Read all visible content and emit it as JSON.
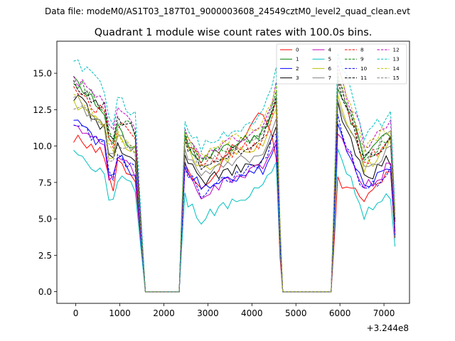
{
  "chart_data": {
    "type": "line",
    "suptitle": "Data file: modeM0/AS1T03_187T01_9000003608_24549cztM0_level2_quad_clean.evt",
    "title": "Quadrant 1 module wise count rates with 100.0s bins.",
    "xlabel": "",
    "ylabel": "",
    "x_offset_label": "+3.244e8",
    "xlim": [
      -430,
      7580
    ],
    "ylim": [
      -0.8,
      17.2
    ],
    "xticks": [
      0,
      1000,
      2000,
      3000,
      4000,
      5000,
      6000,
      7000
    ],
    "yticks": [
      0.0,
      2.5,
      5.0,
      7.5,
      10.0,
      12.5,
      15.0
    ],
    "ytick_labels": [
      "0.0",
      "2.5",
      "5.0",
      "7.5",
      "10.0",
      "12.5",
      "15.0"
    ],
    "legend_position": "upper-right",
    "legend_columns": 4,
    "segments": [
      {
        "start": -50,
        "end": 1430
      },
      {
        "start": 2280,
        "end": 4570
      },
      {
        "start": 5950,
        "end": 7200
      }
    ],
    "series": [
      {
        "name": "0",
        "color": "#ff0000",
        "dash": "solid",
        "levels": [
          10.7,
          7.8,
          8.2,
          12.6,
          7.8,
          8.2
        ]
      },
      {
        "name": "1",
        "color": "#008000",
        "dash": "solid",
        "levels": [
          14.8,
          9.5,
          10.2,
          11.0,
          14.3,
          11.2
        ]
      },
      {
        "name": "2",
        "color": "#0000ff",
        "dash": "solid",
        "levels": [
          11.8,
          8.0,
          8.3,
          8.4,
          11.3,
          8.8
        ]
      },
      {
        "name": "3",
        "color": "#000000",
        "dash": "solid",
        "levels": [
          13.5,
          8.7,
          8.8,
          8.9,
          12.8,
          9.3
        ]
      },
      {
        "name": "4",
        "color": "#bf00bf",
        "dash": "solid",
        "levels": [
          11.8,
          7.9,
          7.9,
          8.6,
          11.0,
          8.8
        ]
      },
      {
        "name": "5",
        "color": "#00bfbf",
        "dash": "solid",
        "levels": [
          9.6,
          6.8,
          6.2,
          7.1,
          9.8,
          6.9
        ]
      },
      {
        "name": "6",
        "color": "#bfbf00",
        "dash": "solid",
        "levels": [
          13.0,
          9.5,
          9.7,
          10.2,
          13.5,
          10.3
        ]
      },
      {
        "name": "7",
        "color": "#808080",
        "dash": "solid",
        "levels": [
          13.3,
          9.3,
          9.2,
          9.6,
          13.2,
          10.1
        ]
      },
      {
        "name": "8",
        "color": "#ff0000",
        "dash": "dashed",
        "levels": [
          13.9,
          10.3,
          10.1,
          10.3,
          14.5,
          10.7
        ]
      },
      {
        "name": "9",
        "color": "#008000",
        "dash": "dashed",
        "levels": [
          14.6,
          10.7,
          10.4,
          10.8,
          14.6,
          11.0
        ]
      },
      {
        "name": "10",
        "color": "#0000ff",
        "dash": "dashed",
        "levels": [
          11.6,
          8.1,
          8.0,
          8.9,
          11.8,
          8.6
        ]
      },
      {
        "name": "11",
        "color": "#000000",
        "dash": "dashed",
        "levels": [
          14.2,
          10.9,
          9.9,
          10.5,
          14.6,
          10.7
        ]
      },
      {
        "name": "12",
        "color": "#bf00bf",
        "dash": "dashed",
        "levels": [
          14.6,
          11.2,
          10.6,
          11.3,
          15.2,
          11.9
        ]
      },
      {
        "name": "13",
        "color": "#00bfbf",
        "dash": "dashed",
        "levels": [
          15.9,
          11.9,
          11.1,
          12.2,
          16.2,
          12.5
        ]
      },
      {
        "name": "14",
        "color": "#bfbf00",
        "dash": "dashed",
        "levels": [
          13.4,
          9.7,
          10.4,
          11.6,
          15.3,
          11.6
        ]
      },
      {
        "name": "15",
        "color": "#808080",
        "dash": "dashed",
        "levels": [
          12.9,
          9.2,
          9.9,
          10.7,
          14.9,
          11.1
        ]
      }
    ]
  }
}
